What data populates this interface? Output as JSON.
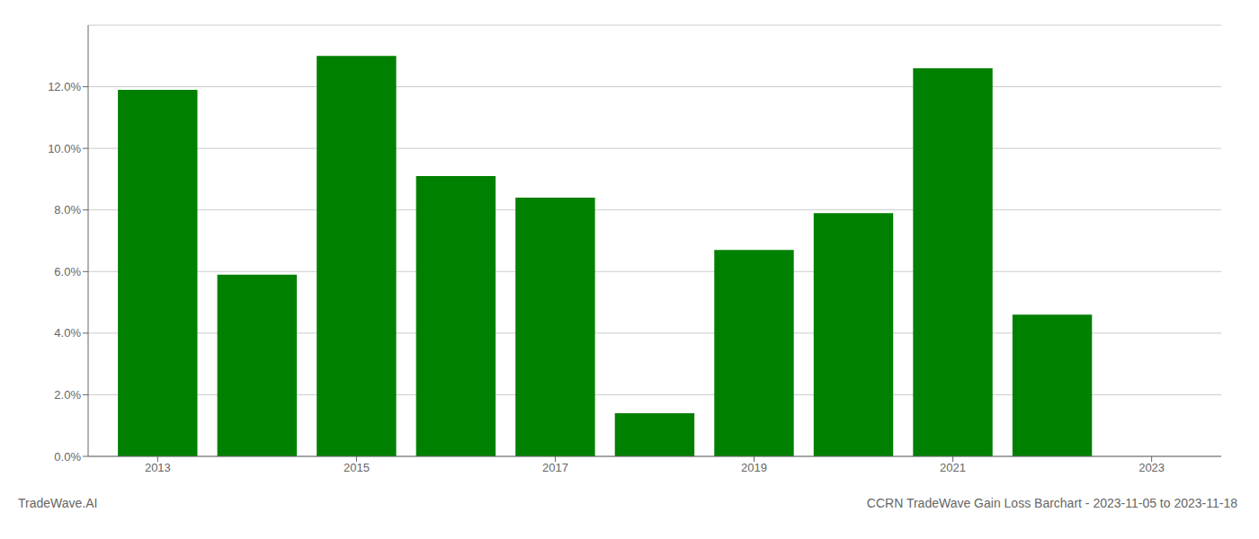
{
  "chart_data": {
    "type": "bar",
    "title": "CCRN TradeWave Gain Loss Barchart - 2023-11-05 to 2023-11-18",
    "annotations": [
      "TradeWave.AI"
    ],
    "x": [
      2013,
      2014,
      2015,
      2016,
      2017,
      2018,
      2019,
      2020,
      2021,
      2022
    ],
    "values": [
      0.119,
      0.059,
      0.13,
      0.091,
      0.084,
      0.014,
      0.067,
      0.079,
      0.126,
      0.046
    ],
    "color": "#008000",
    "xlim": [
      2012.3,
      2023.7
    ],
    "xticks": [
      2013,
      2015,
      2017,
      2019,
      2021,
      2023
    ],
    "ylim": [
      0,
      0.14
    ],
    "yticks": [
      {
        "value": 0.0,
        "label": "0.0%"
      },
      {
        "value": 0.02,
        "label": "2.0%"
      },
      {
        "value": 0.04,
        "label": "4.0%"
      },
      {
        "value": 0.06,
        "label": "6.0%"
      },
      {
        "value": 0.08,
        "label": "8.0%"
      },
      {
        "value": 0.1,
        "label": "10.0%"
      },
      {
        "value": 0.12,
        "label": "12.0%"
      }
    ],
    "grid": true
  }
}
